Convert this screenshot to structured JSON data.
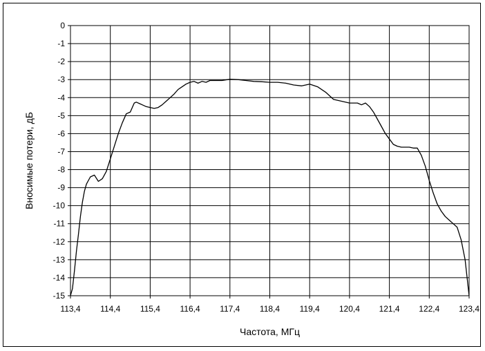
{
  "chart_data": {
    "type": "line",
    "xlabel": "Частота, МГц",
    "ylabel": "Вносимые потери, дБ",
    "xlim": [
      113.4,
      123.4
    ],
    "ylim": [
      -15,
      0
    ],
    "grid": true,
    "x_ticks": [
      113.4,
      114.4,
      115.4,
      116.4,
      117.4,
      118.4,
      119.4,
      120.4,
      121.4,
      122.4,
      123.4
    ],
    "x_tick_labels": [
      "113,4",
      "114,4",
      "115,4",
      "116,4",
      "117,4",
      "118,4",
      "119,4",
      "120,4",
      "121,4",
      "122,4",
      "123,4"
    ],
    "y_ticks": [
      0,
      -1,
      -2,
      -3,
      -4,
      -5,
      -6,
      -7,
      -8,
      -9,
      -10,
      -11,
      -12,
      -13,
      -14,
      -15
    ],
    "y_tick_labels": [
      "0",
      "-1",
      "-2",
      "-3",
      "-4",
      "-5",
      "-6",
      "-7",
      "-8",
      "-9",
      "-10",
      "-11",
      "-12",
      "-13",
      "-14",
      "-15"
    ],
    "series": [
      {
        "color": "#000000",
        "x": [
          113.4,
          113.45,
          113.5,
          113.55,
          113.6,
          113.65,
          113.7,
          113.75,
          113.8,
          113.9,
          114.0,
          114.1,
          114.2,
          114.3,
          114.4,
          114.5,
          114.6,
          114.7,
          114.8,
          114.9,
          115.0,
          115.05,
          115.15,
          115.2,
          115.3,
          115.4,
          115.5,
          115.6,
          115.7,
          115.8,
          115.9,
          116.0,
          116.1,
          116.2,
          116.3,
          116.4,
          116.5,
          116.6,
          116.7,
          116.8,
          116.9,
          117.0,
          117.2,
          117.4,
          117.6,
          117.8,
          118.0,
          118.2,
          118.4,
          118.6,
          118.8,
          119.0,
          119.2,
          119.4,
          119.6,
          119.8,
          120.0,
          120.2,
          120.4,
          120.6,
          120.7,
          120.8,
          120.9,
          121.0,
          121.1,
          121.2,
          121.3,
          121.4,
          121.5,
          121.6,
          121.7,
          121.8,
          121.9,
          122.0,
          122.1,
          122.2,
          122.3,
          122.4,
          122.5,
          122.6,
          122.7,
          122.8,
          122.9,
          123.0,
          123.1,
          123.2,
          123.3,
          123.35,
          123.4
        ],
        "y": [
          -15.0,
          -14.6,
          -13.6,
          -12.5,
          -11.6,
          -10.6,
          -9.8,
          -9.2,
          -8.8,
          -8.4,
          -8.3,
          -8.65,
          -8.5,
          -8.1,
          -7.4,
          -6.7,
          -6.0,
          -5.4,
          -4.9,
          -4.8,
          -4.3,
          -4.25,
          -4.35,
          -4.4,
          -4.5,
          -4.55,
          -4.6,
          -4.55,
          -4.4,
          -4.2,
          -4.0,
          -3.8,
          -3.55,
          -3.4,
          -3.25,
          -3.15,
          -3.1,
          -3.2,
          -3.1,
          -3.15,
          -3.05,
          -3.05,
          -3.05,
          -2.98,
          -3.0,
          -3.05,
          -3.1,
          -3.12,
          -3.15,
          -3.15,
          -3.2,
          -3.3,
          -3.35,
          -3.25,
          -3.4,
          -3.7,
          -4.1,
          -4.2,
          -4.3,
          -4.3,
          -4.4,
          -4.3,
          -4.5,
          -4.8,
          -5.2,
          -5.6,
          -6.0,
          -6.3,
          -6.6,
          -6.7,
          -6.75,
          -6.75,
          -6.75,
          -6.8,
          -6.8,
          -7.2,
          -7.8,
          -8.6,
          -9.3,
          -9.9,
          -10.3,
          -10.6,
          -10.8,
          -11.0,
          -11.2,
          -11.9,
          -13.0,
          -14.0,
          -15.0
        ]
      }
    ]
  }
}
